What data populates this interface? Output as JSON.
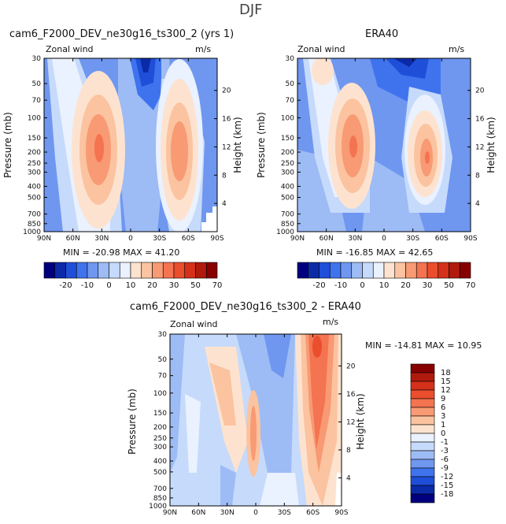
{
  "page": {
    "title": "DJF"
  },
  "chart_data": [
    {
      "type": "contour",
      "title": "cam6_F2000_DEV_ne30g16_ts300_2 (yrs 1)",
      "variable_label": "Zonal wind",
      "units": "m/s",
      "xlabel": "",
      "ylabel": "Pressure (mb)",
      "ylabel_right": "Height (km)",
      "x_ticks": [
        "90N",
        "60N",
        "30N",
        "0",
        "30S",
        "60S",
        "90S"
      ],
      "y_ticks": [
        30,
        50,
        70,
        100,
        150,
        200,
        250,
        300,
        400,
        500,
        700,
        850,
        1000
      ],
      "height_ticks": [
        20,
        16,
        12,
        8,
        4
      ],
      "stats": "MIN = -20.98   MAX =  41.20",
      "min": -20.98,
      "max": 41.2,
      "colorbar_labels": [
        "-20",
        "-10",
        "0",
        "10",
        "20",
        "30",
        "50",
        "70"
      ]
    },
    {
      "type": "contour",
      "title": "ERA40",
      "variable_label": "Zonal wind",
      "units": "m/s",
      "ylabel": "Pressure (mb)",
      "ylabel_right": "Height (km)",
      "x_ticks": [
        "90N",
        "60N",
        "30N",
        "0",
        "30S",
        "60S",
        "90S"
      ],
      "y_ticks": [
        30,
        50,
        70,
        100,
        150,
        200,
        250,
        300,
        400,
        500,
        700,
        850,
        1000
      ],
      "height_ticks": [
        20,
        16,
        12,
        8,
        4
      ],
      "stats": "MIN = -16.85   MAX =  42.65",
      "min": -16.85,
      "max": 42.65,
      "colorbar_labels": [
        "-20",
        "-10",
        "0",
        "10",
        "20",
        "30",
        "50",
        "70"
      ]
    },
    {
      "type": "contour",
      "title": "cam6_F2000_DEV_ne30g16_ts300_2 - ERA40",
      "variable_label": "Zonal wind",
      "units": "m/s",
      "ylabel": "Pressure (mb)",
      "ylabel_right": "Height (km)",
      "x_ticks": [
        "90N",
        "60N",
        "30N",
        "0",
        "30S",
        "60S",
        "90S"
      ],
      "y_ticks": [
        30,
        50,
        70,
        100,
        150,
        200,
        250,
        300,
        400,
        500,
        700,
        850,
        1000
      ],
      "height_ticks": [
        20,
        16,
        12,
        8,
        4
      ],
      "stats": "MIN = -14.81   MAX =  10.95",
      "min": -14.81,
      "max": 10.95,
      "colorbar_labels": [
        "18",
        "15",
        "12",
        "9",
        "6",
        "3",
        "1",
        "0",
        "-1",
        "-3",
        "-6",
        "-9",
        "-12",
        "-15",
        "-18"
      ]
    }
  ],
  "colors": {
    "abs_scale": [
      "#00007f",
      "#0a2aa8",
      "#1f4fd8",
      "#3f73ee",
      "#6f97f0",
      "#9dbbf5",
      "#c6dafb",
      "#eaf1ff",
      "#fde3cf",
      "#fbc3a0",
      "#f89a73",
      "#f47350",
      "#ea4e2c",
      "#d4301a",
      "#b01a0c",
      "#870000"
    ],
    "diff_scale": [
      "#870000",
      "#b01a0c",
      "#d4301a",
      "#ea4e2c",
      "#f47350",
      "#f89a73",
      "#fbc3a0",
      "#fde3cf",
      "#eaf1ff",
      "#c6dafb",
      "#9dbbf5",
      "#6f97f0",
      "#3f73ee",
      "#1f4fd8",
      "#0a2aa8",
      "#00007f"
    ]
  }
}
